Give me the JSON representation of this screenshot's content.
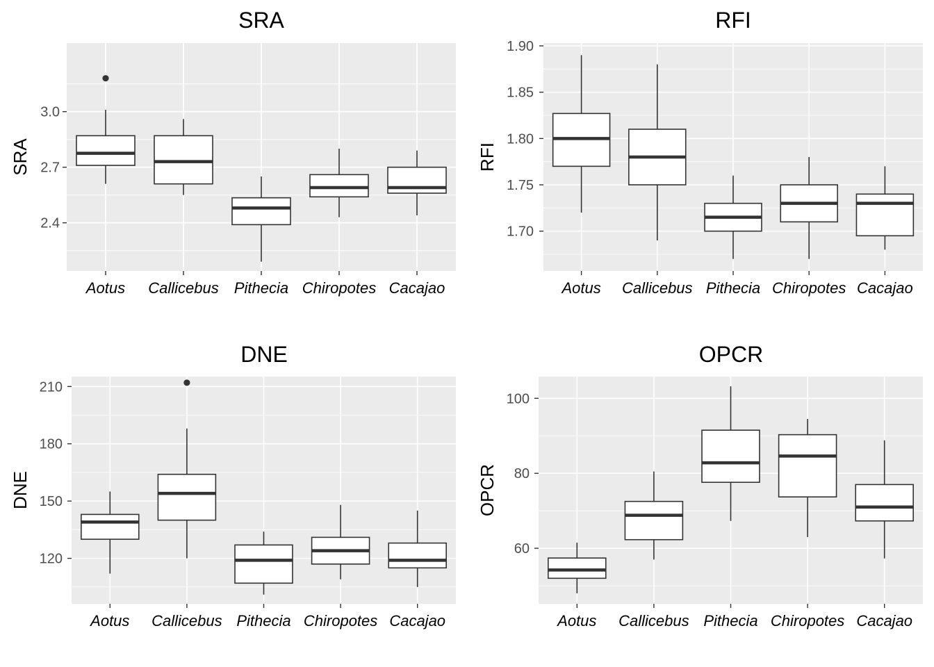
{
  "chart_data": [
    {
      "type": "box",
      "title": "SRA",
      "ylabel": "SRA",
      "xlabel": "",
      "categories": [
        "Aotus",
        "Callicebus",
        "Pithecia",
        "Chiropotes",
        "Cacajao"
      ],
      "ylim": [
        2.14,
        3.37
      ],
      "yticks": [
        2.4,
        2.7,
        3.0
      ],
      "yticks_labels": [
        "2.4",
        "2.7",
        "3.0"
      ],
      "grid": true,
      "boxes": [
        {
          "min": 2.61,
          "q1": 2.71,
          "median": 2.775,
          "q3": 2.87,
          "max": 3.01,
          "outliers": [
            3.18
          ]
        },
        {
          "min": 2.55,
          "q1": 2.61,
          "median": 2.73,
          "q3": 2.87,
          "max": 2.96,
          "outliers": []
        },
        {
          "min": 2.19,
          "q1": 2.39,
          "median": 2.48,
          "q3": 2.535,
          "max": 2.65,
          "outliers": []
        },
        {
          "min": 2.43,
          "q1": 2.54,
          "median": 2.59,
          "q3": 2.66,
          "max": 2.8,
          "outliers": []
        },
        {
          "min": 2.44,
          "q1": 2.56,
          "median": 2.59,
          "q3": 2.7,
          "max": 2.79,
          "outliers": []
        }
      ]
    },
    {
      "type": "box",
      "title": "RFI",
      "ylabel": "RFI",
      "xlabel": "",
      "categories": [
        "Aotus",
        "Callicebus",
        "Pithecia",
        "Chiropotes",
        "Cacajao"
      ],
      "ylim": [
        1.657,
        1.903
      ],
      "yticks": [
        1.7,
        1.75,
        1.8,
        1.85,
        1.9
      ],
      "yticks_labels": [
        "1.70",
        "1.75",
        "1.80",
        "1.85",
        "1.90"
      ],
      "grid": true,
      "boxes": [
        {
          "min": 1.72,
          "q1": 1.77,
          "median": 1.8,
          "q3": 1.827,
          "max": 1.89,
          "outliers": []
        },
        {
          "min": 1.69,
          "q1": 1.75,
          "median": 1.78,
          "q3": 1.81,
          "max": 1.88,
          "outliers": []
        },
        {
          "min": 1.67,
          "q1": 1.7,
          "median": 1.715,
          "q3": 1.73,
          "max": 1.76,
          "outliers": []
        },
        {
          "min": 1.67,
          "q1": 1.71,
          "median": 1.73,
          "q3": 1.75,
          "max": 1.78,
          "outliers": []
        },
        {
          "min": 1.68,
          "q1": 1.695,
          "median": 1.73,
          "q3": 1.74,
          "max": 1.77,
          "outliers": []
        }
      ]
    },
    {
      "type": "box",
      "title": "DNE",
      "ylabel": "DNE",
      "xlabel": "",
      "categories": [
        "Aotus",
        "Callicebus",
        "Pithecia",
        "Chiropotes",
        "Cacajao"
      ],
      "ylim": [
        96.2,
        215.2
      ],
      "yticks": [
        120,
        150,
        180,
        210
      ],
      "yticks_labels": [
        "120",
        "150",
        "180",
        "210"
      ],
      "grid": true,
      "boxes": [
        {
          "min": 112,
          "q1": 130,
          "median": 139,
          "q3": 143,
          "max": 155,
          "outliers": []
        },
        {
          "min": 120,
          "q1": 140,
          "median": 154,
          "q3": 164,
          "max": 188,
          "outliers": [
            212
          ]
        },
        {
          "min": 101,
          "q1": 107,
          "median": 119,
          "q3": 127,
          "max": 134,
          "outliers": []
        },
        {
          "min": 109,
          "q1": 117,
          "median": 124,
          "q3": 131,
          "max": 148,
          "outliers": []
        },
        {
          "min": 105,
          "q1": 115,
          "median": 119,
          "q3": 128,
          "max": 145,
          "outliers": []
        }
      ]
    },
    {
      "type": "box",
      "title": "OPCR",
      "ylabel": "OPCR",
      "xlabel": "",
      "categories": [
        "Aotus",
        "Callicebus",
        "Pithecia",
        "Chiropotes",
        "Cacajao"
      ],
      "ylim": [
        45.2,
        105.8
      ],
      "yticks": [
        60,
        80,
        100
      ],
      "yticks_labels": [
        "60",
        "80",
        "100"
      ],
      "grid": true,
      "boxes": [
        {
          "min": 48,
          "q1": 52,
          "median": 54.2,
          "q3": 57.4,
          "max": 61.5,
          "outliers": []
        },
        {
          "min": 57,
          "q1": 62.3,
          "median": 68.8,
          "q3": 72.5,
          "max": 80.5,
          "outliers": []
        },
        {
          "min": 67.3,
          "q1": 77.6,
          "median": 82.8,
          "q3": 91.5,
          "max": 103.2,
          "outliers": []
        },
        {
          "min": 63,
          "q1": 73.7,
          "median": 84.6,
          "q3": 90.3,
          "max": 94.5,
          "outliers": []
        },
        {
          "min": 57.3,
          "q1": 67.3,
          "median": 71,
          "q3": 77,
          "max": 88.8,
          "outliers": []
        }
      ]
    }
  ]
}
